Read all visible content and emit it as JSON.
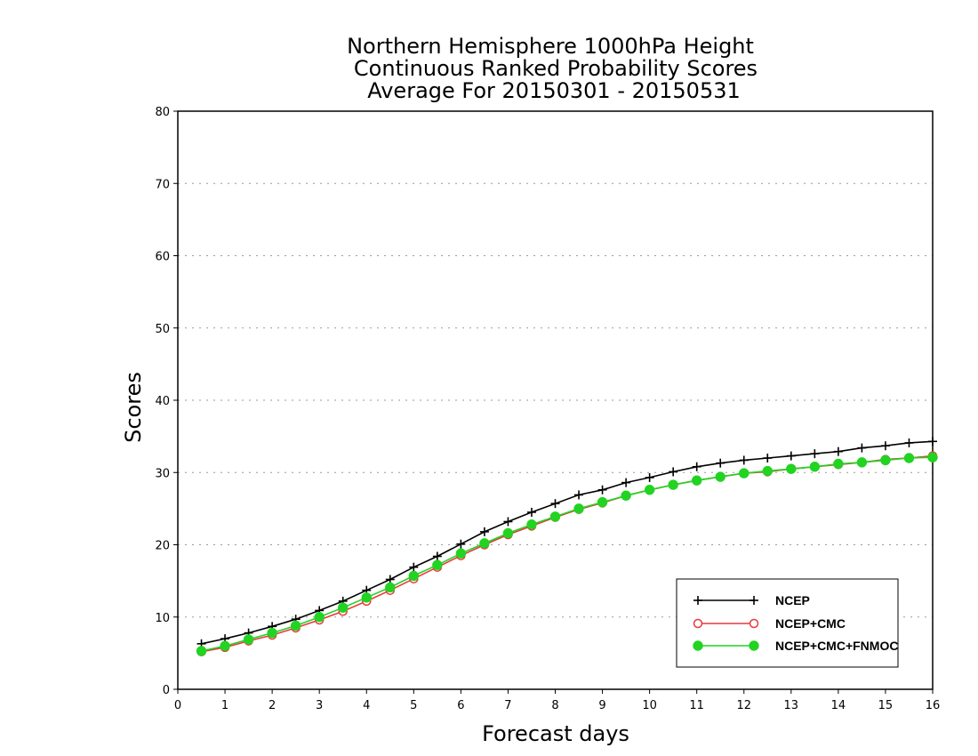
{
  "chart_data": {
    "type": "line",
    "title_lines": [
      "Northern Hemisphere 1000hPa Height",
      "Continuous Ranked Probability Scores",
      "Average For 20150301 - 20150531"
    ],
    "xlabel": "Forecast days",
    "ylabel": "Scores",
    "xlim": [
      0,
      16
    ],
    "ylim": [
      0,
      80
    ],
    "xticks": [
      0,
      1,
      2,
      3,
      4,
      5,
      6,
      7,
      8,
      9,
      10,
      11,
      12,
      13,
      14,
      15,
      16
    ],
    "yticks": [
      0,
      10,
      20,
      30,
      40,
      50,
      60,
      70,
      80
    ],
    "grid": true,
    "legend_position": "bottom-right",
    "x": [
      0.5,
      1,
      1.5,
      2,
      2.5,
      3,
      3.5,
      4,
      4.5,
      5,
      5.5,
      6,
      6.5,
      7,
      7.5,
      8,
      8.5,
      9,
      9.5,
      10,
      10.5,
      11,
      11.5,
      12,
      12.5,
      13,
      13.5,
      14,
      14.5,
      15,
      15.5,
      16
    ],
    "series": [
      {
        "name": "NCEP",
        "color": "#000000",
        "marker": "plus",
        "values": [
          6.3,
          7.0,
          7.8,
          8.7,
          9.7,
          10.9,
          12.2,
          13.7,
          15.2,
          16.9,
          18.4,
          20.1,
          21.8,
          23.2,
          24.5,
          25.7,
          26.9,
          27.6,
          28.6,
          29.3,
          30.1,
          30.8,
          31.3,
          31.7,
          32.0,
          32.3,
          32.6,
          32.9,
          33.4,
          33.7,
          34.1,
          34.3
        ]
      },
      {
        "name": "NCEP+CMC",
        "color": "#e8393b",
        "marker": "open-circle",
        "values": [
          5.2,
          5.8,
          6.7,
          7.5,
          8.5,
          9.6,
          10.8,
          12.2,
          13.7,
          15.3,
          16.9,
          18.5,
          20.0,
          21.4,
          22.6,
          23.8,
          24.9,
          25.8,
          26.8,
          27.6,
          28.3,
          28.9,
          29.4,
          29.9,
          30.1,
          30.5,
          30.8,
          31.1,
          31.4,
          31.8,
          32.0,
          32.3
        ]
      },
      {
        "name": "NCEP+CMC+FNMOC",
        "color": "#22d322",
        "marker": "filled-circle",
        "values": [
          5.3,
          6.0,
          6.9,
          7.8,
          8.8,
          10.0,
          11.3,
          12.7,
          14.1,
          15.7,
          17.2,
          18.8,
          20.2,
          21.6,
          22.8,
          23.9,
          25.0,
          25.9,
          26.8,
          27.6,
          28.3,
          28.9,
          29.4,
          29.9,
          30.2,
          30.5,
          30.8,
          31.2,
          31.4,
          31.7,
          32.0,
          32.1
        ]
      }
    ]
  }
}
